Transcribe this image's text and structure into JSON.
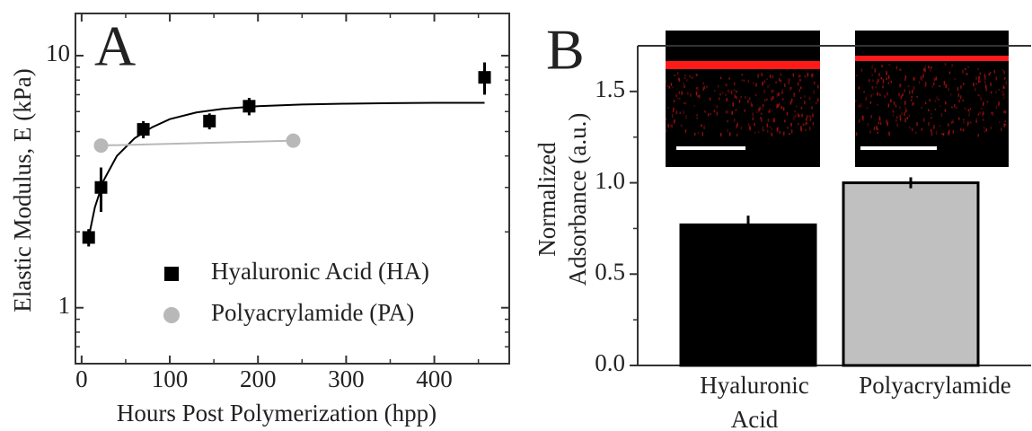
{
  "chart_data": [
    {
      "type": "scatter",
      "annotation": "A",
      "xlabel": "Hours Post Polymerization (hpp)",
      "ylabel": "Elastic Modulus, E (kPa)",
      "xlim": [
        -7,
        485
      ],
      "ylim": [
        0.6,
        14.7
      ],
      "log_y": true,
      "xticks": [
        0,
        100,
        200,
        300,
        400
      ],
      "xminor_ticks": [
        50,
        150,
        250,
        350,
        450
      ],
      "yticks": [
        1,
        10
      ],
      "yminor_ticks": [
        0.6,
        0.7,
        0.8,
        0.9,
        2,
        3,
        4,
        5,
        6,
        7,
        8,
        9
      ],
      "legend": "lower right",
      "series": [
        {
          "name": "Hyaluronic Acid (HA)",
          "color": "#000000",
          "marker": "square",
          "x": [
            8,
            22,
            70,
            145,
            190,
            457
          ],
          "values": [
            1.9,
            3.0,
            5.1,
            5.5,
            6.3,
            8.2
          ],
          "errors": [
            0.15,
            0.6,
            0.4,
            0.4,
            0.5,
            1.2
          ],
          "fit_x": [
            8,
            15,
            25,
            40,
            60,
            80,
            100,
            130,
            160,
            200,
            250,
            300,
            350,
            400,
            457
          ],
          "fit_values": [
            1.9,
            2.5,
            3.2,
            4.0,
            4.7,
            5.2,
            5.6,
            5.95,
            6.15,
            6.3,
            6.4,
            6.45,
            6.48,
            6.5,
            6.5
          ]
        },
        {
          "name": "Polyacrylamide (PA)",
          "color": "#b8b8b8",
          "marker": "circle",
          "x": [
            22,
            240
          ],
          "values": [
            4.4,
            4.6
          ],
          "fit_x": [
            22,
            240
          ],
          "fit_values": [
            4.4,
            4.6
          ]
        }
      ]
    },
    {
      "type": "bar",
      "annotation": "B",
      "ylabel": [
        "Normalized",
        "Adsorbance (a.u.)"
      ],
      "categories": [
        "Hyaluronic Acid",
        "Polyacrylamide"
      ],
      "values": [
        0.77,
        1.0
      ],
      "errors": [
        0.05,
        0.03
      ],
      "colors": [
        "#000000",
        "#c0c0c0"
      ],
      "ylim": [
        0,
        1.75
      ],
      "yticks": [
        {
          "value": 0,
          "label": "0.0"
        },
        {
          "value": 0.5,
          "label": "0.5"
        },
        {
          "value": 1,
          "label": "1.0"
        },
        {
          "value": 1.5,
          "label": "1.5"
        }
      ],
      "yminor_ticks": [
        0.25,
        0.75,
        1.25
      ]
    }
  ]
}
